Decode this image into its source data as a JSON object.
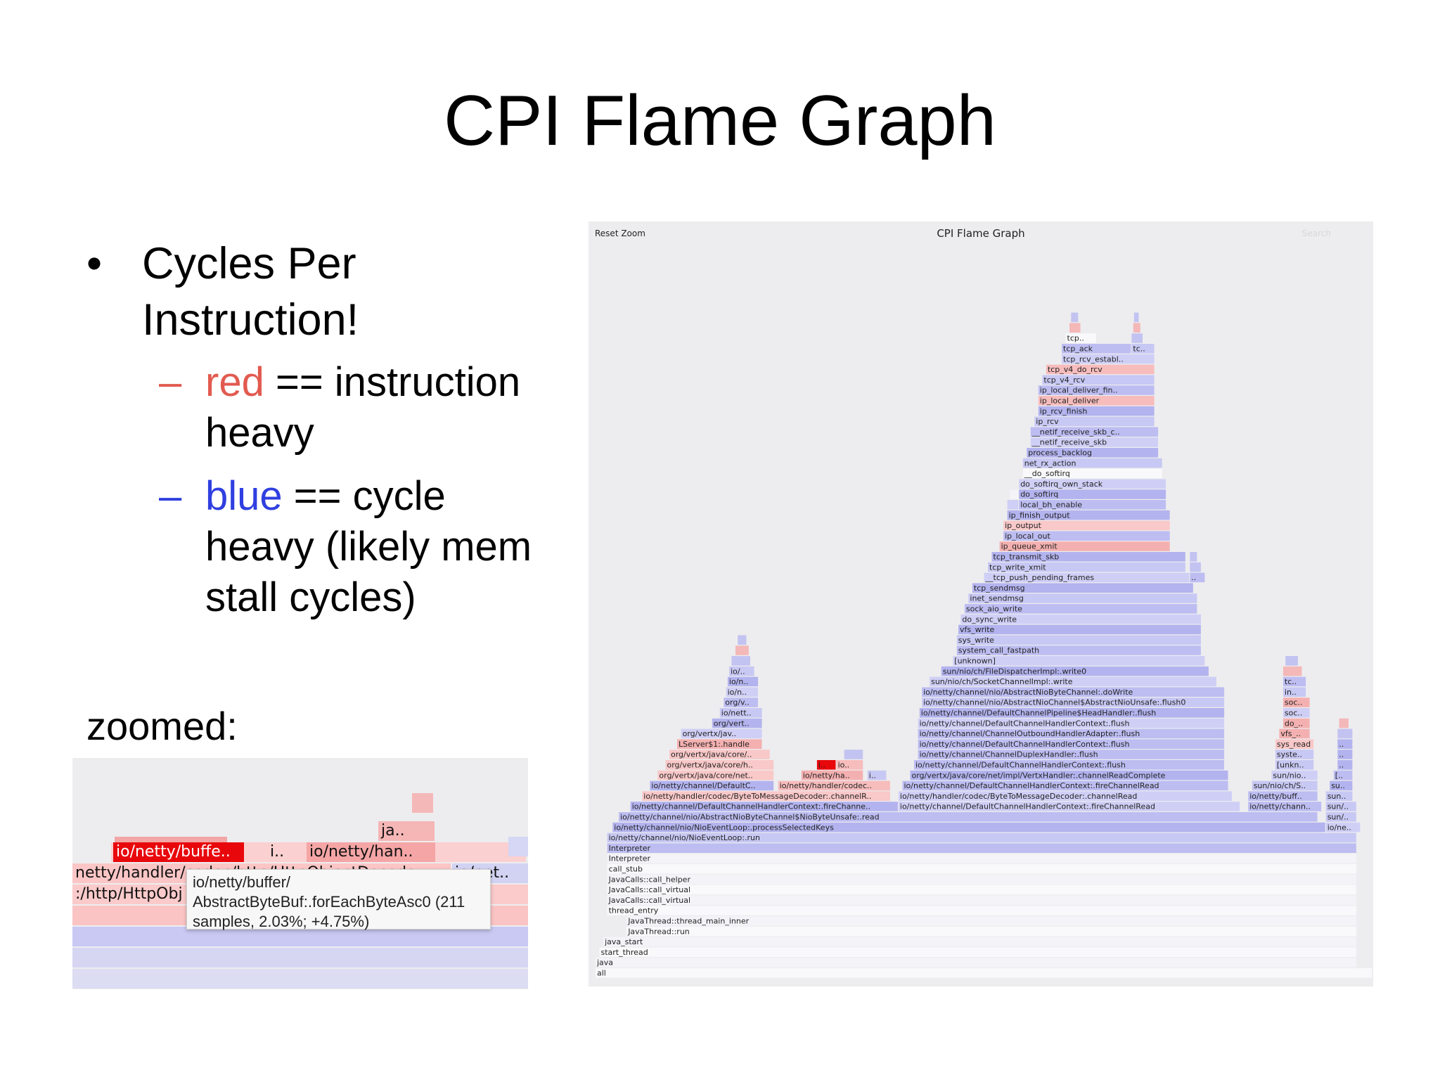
{
  "slide": {
    "title": "CPI Flame Graph",
    "bullet_line1": "Cycles Per",
    "bullet_line2": "Instruction!",
    "sub1": {
      "colored": "red",
      "rest": " == instruction",
      "line2": "heavy"
    },
    "sub2": {
      "colored": "blue",
      "rest": " == cycle",
      "line2": "heavy (likely mem",
      "line3": "stall cycles)"
    },
    "zoom_label": "zoomed:"
  },
  "zoomed": {
    "labels": [
      "io/netty/buffe..",
      "i..",
      "io/netty/han..",
      "ja..",
      "netty/handler/codec/http/HttpObjectDecode",
      "io/net..",
      ":/http/HttpObj"
    ],
    "tooltip": {
      "line1": "io/netty/buffer/",
      "line2": "AbstractByteBuf:.forEachByteAsc0 (211",
      "line3": "samples, 2.03%; +4.75%)"
    }
  },
  "flamegraph": {
    "title": "CPI Flame Graph",
    "reset_zoom": "Reset Zoom",
    "search": "Search",
    "frames": [
      {
        "d": 0,
        "s": 0,
        "e": 1,
        "n": "all",
        "c": "w"
      },
      {
        "d": 1,
        "s": 0,
        "e": 0.98,
        "n": "java",
        "c": "w"
      },
      {
        "d": 2,
        "s": 0.005,
        "e": 0.98,
        "n": "start_thread",
        "c": "w"
      },
      {
        "d": 3,
        "s": 0.01,
        "e": 0.98,
        "n": "java_start",
        "c": "w"
      },
      {
        "d": 4,
        "s": 0.04,
        "e": 0.98,
        "n": "JavaThread::run",
        "c": "w"
      },
      {
        "d": 5,
        "s": 0.04,
        "e": 0.98,
        "n": "JavaThread::thread_main_inner",
        "c": "w"
      },
      {
        "d": 6,
        "s": 0.015,
        "e": 0.98,
        "n": "thread_entry",
        "c": "w"
      },
      {
        "d": 7,
        "s": 0.015,
        "e": 0.98,
        "n": "JavaCalls::call_virtual",
        "c": "w"
      },
      {
        "d": 8,
        "s": 0.015,
        "e": 0.98,
        "n": "JavaCalls::call_virtual",
        "c": "w"
      },
      {
        "d": 9,
        "s": 0.015,
        "e": 0.98,
        "n": "JavaCalls::call_helper",
        "c": "w"
      },
      {
        "d": 10,
        "s": 0.015,
        "e": 0.98,
        "n": "call_stub",
        "c": "w"
      },
      {
        "d": 11,
        "s": 0.015,
        "e": 0.98,
        "n": "Interpreter",
        "c": "w"
      },
      {
        "d": 12,
        "s": 0.015,
        "e": 0.98,
        "n": "Interpreter",
        "c": "b"
      },
      {
        "d": 13,
        "s": 0.015,
        "e": 0.98,
        "n": "io/netty/channel/nio/NioEventLoop:.run",
        "c": "b"
      },
      {
        "d": 14,
        "s": 0.022,
        "e": 0.94,
        "n": "io/netty/channel/nio/NioEventLoop:.processSelectedKeys",
        "c": "b"
      },
      {
        "d": 14,
        "s": 0.94,
        "e": 0.985,
        "n": "io/nett..",
        "c": "b"
      },
      {
        "d": 15,
        "s": 0.03,
        "e": 0.93,
        "n": "io/netty/channel/nio/AbstractNioByteChannel$NioByteUnsafe:.read",
        "c": "b"
      },
      {
        "d": 15,
        "s": 0.94,
        "e": 0.98,
        "n": "sun/nio..",
        "c": "b"
      },
      {
        "d": 16,
        "s": 0.045,
        "e": 0.39,
        "n": "io/netty/channel/DefaultChannelHandlerContext:.fireChannelRead",
        "c": "b"
      },
      {
        "d": 16,
        "s": 0.39,
        "e": 0.83,
        "n": "io/netty/channel/DefaultChannelHandlerContext:.fireChannelRead",
        "c": "b"
      },
      {
        "d": 16,
        "s": 0.84,
        "e": 0.935,
        "n": "io/netty/channel..",
        "c": "b"
      },
      {
        "d": 16,
        "s": 0.94,
        "e": 0.98,
        "n": "sun/ni..",
        "c": "b"
      },
      {
        "d": 17,
        "s": 0.06,
        "e": 0.38,
        "n": "io/netty/handler/codec/ByteToMessageDecoder:.channelRead",
        "c": "r"
      },
      {
        "d": 17,
        "s": 0.39,
        "e": 0.82,
        "n": "io/netty/handler/codec/ByteToMessageDecoder:.channelRead",
        "c": "b"
      },
      {
        "d": 17,
        "s": 0.84,
        "e": 0.93,
        "n": "io/netty/buffer/..",
        "c": "b"
      },
      {
        "d": 17,
        "s": 0.94,
        "e": 0.975,
        "n": "sun/..",
        "c": "b"
      },
      {
        "d": 18,
        "s": 0.07,
        "e": 0.23,
        "n": "io/netty/channel/DefaultChan..",
        "c": "b"
      },
      {
        "d": 18,
        "s": 0.235,
        "e": 0.38,
        "n": "io/netty/handler/codec/htt..",
        "c": "r"
      },
      {
        "d": 18,
        "s": 0.395,
        "e": 0.815,
        "n": "io/netty/channel/DefaultChannelHandlerContext:.fireChannelRead",
        "c": "b"
      },
      {
        "d": 18,
        "s": 0.845,
        "e": 0.93,
        "n": "sun/nio/ch/So..",
        "c": "b"
      },
      {
        "d": 18,
        "s": 0.945,
        "e": 0.975,
        "n": "sun/..",
        "c": "b"
      },
      {
        "d": 19,
        "s": 0.08,
        "e": 0.23,
        "n": "org/vertx/java/core/net/imp..",
        "c": "r"
      },
      {
        "d": 19,
        "s": 0.265,
        "e": 0.345,
        "n": "io/netty/handl..",
        "c": "r"
      },
      {
        "d": 19,
        "s": 0.35,
        "e": 0.375,
        "n": "i..",
        "c": "b"
      },
      {
        "d": 19,
        "s": 0.405,
        "e": 0.815,
        "n": "org/vertx/java/core/net/impl/VertxHandler:.channelReadComplete",
        "c": "b"
      },
      {
        "d": 19,
        "s": 0.87,
        "e": 0.93,
        "n": "sun/nio..",
        "c": "b"
      },
      {
        "d": 19,
        "s": 0.95,
        "e": 0.975,
        "n": "[u..",
        "c": "b"
      },
      {
        "d": 20,
        "s": 0.09,
        "e": 0.23,
        "n": "org/vertx/java/core/http/..",
        "c": "r"
      },
      {
        "d": 20,
        "s": 0.285,
        "e": 0.31,
        "n": "io..",
        "c": "R"
      },
      {
        "d": 20,
        "s": 0.31,
        "e": 0.345,
        "n": "io..",
        "c": "r"
      },
      {
        "d": 20,
        "s": 0.41,
        "e": 0.81,
        "n": "io/netty/channel/DefaultChannelHandlerContext:.flush",
        "c": "b"
      },
      {
        "d": 20,
        "s": 0.875,
        "e": 0.925,
        "n": "[unkn..",
        "c": "b"
      },
      {
        "d": 20,
        "s": 0.955,
        "e": 0.975,
        "n": "sys..",
        "c": "b"
      },
      {
        "d": 21,
        "s": 0.095,
        "e": 0.225,
        "n": "org/vertx/java/core/http..",
        "c": "r"
      },
      {
        "d": 21,
        "s": 0.415,
        "e": 0.81,
        "n": "io/netty/channel/ChannelDuplexHandler:.flush",
        "c": "b"
      },
      {
        "d": 21,
        "s": 0.875,
        "e": 0.925,
        "n": "syste..",
        "c": "b"
      },
      {
        "d": 21,
        "s": 0.955,
        "e": 0.975,
        "n": "sy..",
        "c": "b"
      },
      {
        "d": 22,
        "s": 0.105,
        "e": 0.215,
        "n": "LServer$1:.handle",
        "c": "r"
      },
      {
        "d": 22,
        "s": 0.415,
        "e": 0.81,
        "n": "io/netty/channel/DefaultChannelHandlerContext:.flush",
        "c": "b"
      },
      {
        "d": 22,
        "s": 0.875,
        "e": 0.925,
        "n": "sys_read",
        "c": "r"
      },
      {
        "d": 22,
        "s": 0.955,
        "e": 0.975,
        "n": "e..",
        "c": "b"
      },
      {
        "d": 23,
        "s": 0.11,
        "e": 0.215,
        "n": "org/vertx/jav..",
        "c": "b"
      },
      {
        "d": 23,
        "s": 0.415,
        "e": 0.81,
        "n": "io/netty/channel/ChannelOutboundHandlerAdapter:.flush",
        "c": "b"
      },
      {
        "d": 23,
        "s": 0.88,
        "e": 0.92,
        "n": "vfs_r..",
        "c": "r"
      },
      {
        "d": 24,
        "s": 0.15,
        "e": 0.215,
        "n": "org/vertx..",
        "c": "b"
      },
      {
        "d": 24,
        "s": 0.415,
        "e": 0.81,
        "n": "io/netty/channel/DefaultChannelHandlerContext:.flush",
        "c": "b"
      },
      {
        "d": 24,
        "s": 0.885,
        "e": 0.92,
        "n": "do_..",
        "c": "r"
      },
      {
        "d": 25,
        "s": 0.16,
        "e": 0.215,
        "n": "io/netty/..",
        "c": "b"
      },
      {
        "d": 25,
        "s": 0.417,
        "e": 0.81,
        "n": "io/netty/channel/DefaultChannelPipeline$HeadHandler:.flush",
        "c": "b"
      },
      {
        "d": 25,
        "s": 0.885,
        "e": 0.92,
        "n": "soc..",
        "c": "b"
      },
      {
        "d": 26,
        "s": 0.165,
        "e": 0.21,
        "n": "org/ver..",
        "c": "b"
      },
      {
        "d": 26,
        "s": 0.42,
        "e": 0.81,
        "n": "io/netty/channel/nio/AbstractNioChannel$AbstractNioUnsafe:.flush0",
        "c": "b"
      },
      {
        "d": 26,
        "s": 0.885,
        "e": 0.92,
        "n": "soc..",
        "c": "r"
      },
      {
        "d": 27,
        "s": 0.168,
        "e": 0.21,
        "n": "io/nett..",
        "c": "b"
      },
      {
        "d": 27,
        "s": 0.42,
        "e": 0.81,
        "n": "io/netty/channel/nio/AbstractNioByteChannel:.doWrite",
        "c": "b"
      },
      {
        "d": 27,
        "s": 0.885,
        "e": 0.915,
        "n": "ine..",
        "c": "b"
      },
      {
        "d": 28,
        "s": 0.17,
        "e": 0.21,
        "n": "io/nett..",
        "c": "b"
      },
      {
        "d": 28,
        "s": 0.43,
        "e": 0.8,
        "n": "sun/nio/ch/SocketChannelImpl:.write",
        "c": "b"
      },
      {
        "d": 28,
        "s": 0.885,
        "e": 0.915,
        "n": "tcp..",
        "c": "b"
      },
      {
        "d": 29,
        "s": 0.172,
        "e": 0.205,
        "n": "io/n..",
        "c": "b"
      },
      {
        "d": 29,
        "s": 0.445,
        "e": 0.79,
        "n": "sun/nio/ch/FileDispatcherImpl:.write0",
        "c": "b"
      },
      {
        "d": 30,
        "s": 0.46,
        "e": 0.785,
        "n": "[unknown]",
        "c": "b"
      },
      {
        "d": 31,
        "s": 0.465,
        "e": 0.78,
        "n": "system_call_fastpath",
        "c": "b"
      },
      {
        "d": 32,
        "s": 0.465,
        "e": 0.78,
        "n": "sys_write",
        "c": "b"
      },
      {
        "d": 33,
        "s": 0.467,
        "e": 0.78,
        "n": "vfs_write",
        "c": "b"
      },
      {
        "d": 34,
        "s": 0.47,
        "e": 0.78,
        "n": "do_sync_write",
        "c": "b"
      },
      {
        "d": 35,
        "s": 0.475,
        "e": 0.775,
        "n": "sock_aio_write",
        "c": "b"
      },
      {
        "d": 36,
        "s": 0.48,
        "e": 0.775,
        "n": "inet_sendmsg",
        "c": "b"
      },
      {
        "d": 37,
        "s": 0.485,
        "e": 0.77,
        "n": "tcp_sendmsg",
        "c": "b"
      },
      {
        "d": 38,
        "s": 0.5,
        "e": 0.765,
        "n": "__tcp_push_pending_frames",
        "c": "b"
      },
      {
        "d": 38,
        "s": 0.765,
        "e": 0.785,
        "n": "s..",
        "c": "b"
      },
      {
        "d": 39,
        "s": 0.505,
        "e": 0.76,
        "n": "tcp_write_xmit",
        "c": "b"
      },
      {
        "d": 40,
        "s": 0.51,
        "e": 0.76,
        "n": "tcp_transmit_skb",
        "c": "b"
      },
      {
        "d": 41,
        "s": 0.52,
        "e": 0.74,
        "n": "ip_queue_xmit",
        "c": "r"
      },
      {
        "d": 42,
        "s": 0.525,
        "e": 0.74,
        "n": "ip_local_out",
        "c": "b"
      },
      {
        "d": 43,
        "s": 0.525,
        "e": 0.74,
        "n": "ip_output",
        "c": "r"
      },
      {
        "d": 44,
        "s": 0.53,
        "e": 0.74,
        "n": "ip_finish_output",
        "c": "b"
      },
      {
        "d": 45,
        "s": 0.53,
        "e": 0.545,
        "n": "d..",
        "c": "b"
      },
      {
        "d": 45,
        "s": 0.545,
        "e": 0.735,
        "n": "local_bh_enable",
        "c": "b"
      },
      {
        "d": 46,
        "s": 0.533,
        "e": 0.545,
        "n": "_..",
        "c": "w"
      },
      {
        "d": 46,
        "s": 0.545,
        "e": 0.735,
        "n": "do_softirq",
        "c": "b"
      },
      {
        "d": 47,
        "s": 0.545,
        "e": 0.735,
        "n": "do_softirq_own_stack",
        "c": "b"
      },
      {
        "d": 48,
        "s": 0.55,
        "e": 0.73,
        "n": "__do_softirq",
        "c": "w"
      },
      {
        "d": 49,
        "s": 0.55,
        "e": 0.73,
        "n": "net_rx_action",
        "c": "b"
      },
      {
        "d": 50,
        "s": 0.555,
        "e": 0.725,
        "n": "process_backlog",
        "c": "b"
      },
      {
        "d": 51,
        "s": 0.56,
        "e": 0.725,
        "n": "__netif_receive_skb",
        "c": "b"
      },
      {
        "d": 52,
        "s": 0.56,
        "e": 0.725,
        "n": "__netif_receive_skb_c..",
        "c": "b"
      },
      {
        "d": 53,
        "s": 0.565,
        "e": 0.72,
        "n": "ip_rcv",
        "c": "b"
      },
      {
        "d": 54,
        "s": 0.57,
        "e": 0.72,
        "n": "ip_rcv_finish",
        "c": "b"
      },
      {
        "d": 55,
        "s": 0.57,
        "e": 0.72,
        "n": "ip_local_deliver",
        "c": "r"
      },
      {
        "d": 56,
        "s": 0.57,
        "e": 0.72,
        "n": "ip_local_deliver_fin..",
        "c": "b"
      },
      {
        "d": 57,
        "s": 0.575,
        "e": 0.72,
        "n": "tcp_v4_rcv",
        "c": "b"
      },
      {
        "d": 58,
        "s": 0.58,
        "e": 0.72,
        "n": "tcp_v4_do_rcv",
        "c": "r"
      },
      {
        "d": 59,
        "s": 0.6,
        "e": 0.72,
        "n": "tcp_rcv_establ..",
        "c": "b"
      },
      {
        "d": 60,
        "s": 0.6,
        "e": 0.69,
        "n": "tcp_ack",
        "c": "b"
      },
      {
        "d": 60,
        "s": 0.69,
        "e": 0.72,
        "n": "tc..",
        "c": "b"
      },
      {
        "d": 61,
        "s": 0.605,
        "e": 0.645,
        "n": "tcp..",
        "c": "w"
      }
    ]
  }
}
